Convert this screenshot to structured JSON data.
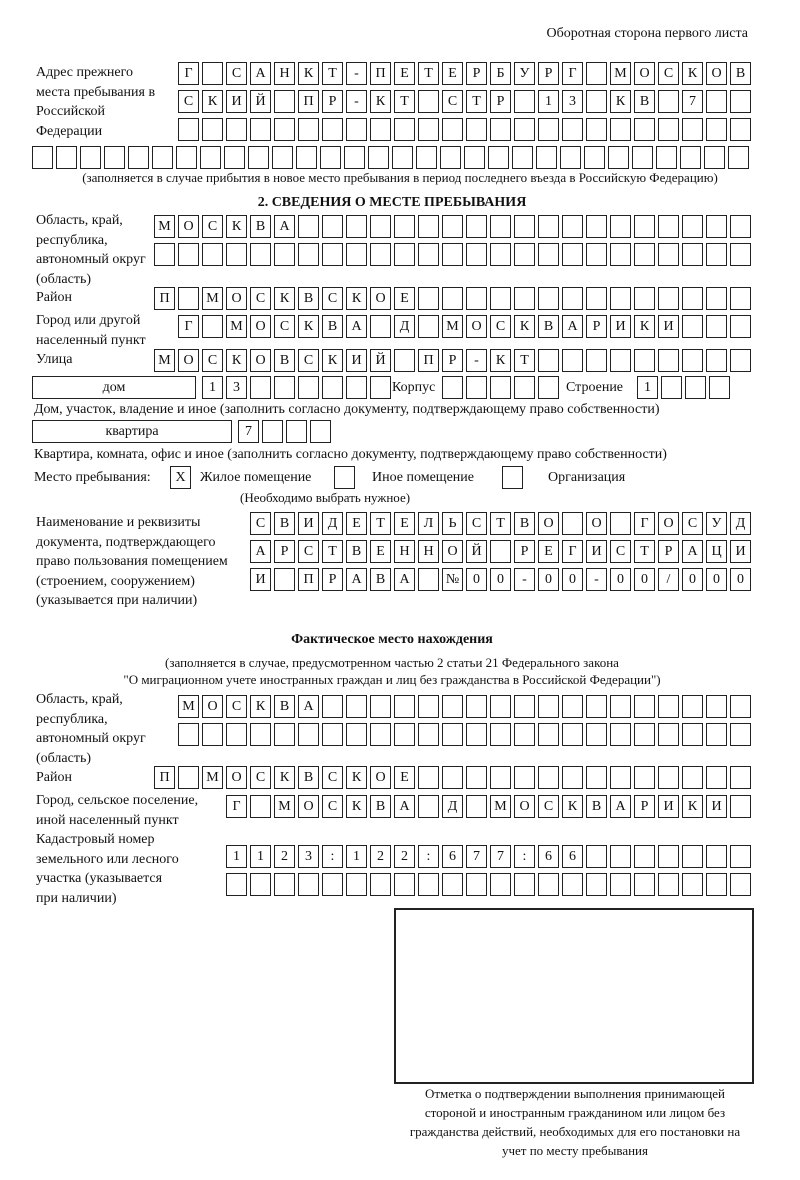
{
  "header": "Оборотная сторона первого листа",
  "previous_address": {
    "label": "Адрес прежнего места пребывания в Российской Федерации",
    "rows": [
      [
        "Г",
        "",
        "С",
        "А",
        "Н",
        "К",
        "Т",
        "-",
        "П",
        "Е",
        "Т",
        "Е",
        "Р",
        "Б",
        "У",
        "Р",
        "Г",
        "",
        "М",
        "О",
        "С",
        "К",
        "О",
        "В"
      ],
      [
        "С",
        "К",
        "И",
        "Й",
        "",
        "П",
        "Р",
        "-",
        "К",
        "Т",
        "",
        "С",
        "Т",
        "Р",
        "",
        "1",
        "3",
        "",
        "К",
        "В",
        "",
        "7",
        "",
        ""
      ],
      [
        "",
        "",
        "",
        "",
        "",
        "",
        "",
        "",
        "",
        "",
        "",
        "",
        "",
        "",
        "",
        "",
        "",
        "",
        "",
        "",
        "",
        "",
        "",
        ""
      ],
      [
        "",
        "",
        "",
        "",
        "",
        "",
        "",
        "",
        "",
        "",
        "",
        "",
        "",
        "",
        "",
        "",
        "",
        "",
        "",
        "",
        "",
        "",
        "",
        "",
        "",
        "",
        "",
        "",
        "",
        ""
      ]
    ],
    "note": "(заполняется в случае прибытия в новое место пребывания в период последнего въезда в Российскую Федерацию)"
  },
  "section2": {
    "title": "2. СВЕДЕНИЯ О МЕСТЕ ПРЕБЫВАНИЯ",
    "region_label": "Область, край, республика, автономный округ (область)",
    "region_rows": [
      [
        "М",
        "О",
        "С",
        "К",
        "В",
        "А",
        "",
        "",
        "",
        "",
        "",
        "",
        "",
        "",
        "",
        "",
        "",
        "",
        "",
        "",
        "",
        "",
        "",
        "",
        ""
      ],
      [
        "",
        "",
        "",
        "",
        "",
        "",
        "",
        "",
        "",
        "",
        "",
        "",
        "",
        "",
        "",
        "",
        "",
        "",
        "",
        "",
        "",
        "",
        "",
        "",
        ""
      ]
    ],
    "district_label": "Район",
    "district_row": [
      "П",
      "",
      "М",
      "О",
      "С",
      "К",
      "В",
      "С",
      "К",
      "О",
      "Е",
      "",
      "",
      "",
      "",
      "",
      "",
      "",
      "",
      "",
      "",
      "",
      "",
      "",
      ""
    ],
    "city_label": "Город или другой населенный пункт",
    "city_row": [
      "Г",
      "",
      "М",
      "О",
      "С",
      "К",
      "В",
      "А",
      "",
      "Д",
      "",
      "М",
      "О",
      "С",
      "К",
      "В",
      "А",
      "Р",
      "И",
      "К",
      "И",
      "",
      "",
      ""
    ],
    "street_label": "Улица",
    "street_row": [
      "М",
      "О",
      "С",
      "К",
      "О",
      "В",
      "С",
      "К",
      "И",
      "Й",
      "",
      "П",
      "Р",
      "-",
      "К",
      "Т",
      "",
      "",
      "",
      "",
      "",
      "",
      "",
      "",
      ""
    ],
    "house_type": "дом",
    "house_cells": [
      "1",
      "3",
      "",
      "",
      "",
      "",
      "",
      ""
    ],
    "korpus_label": "Корпус",
    "korpus_cells": [
      "",
      "",
      "",
      "",
      ""
    ],
    "stroenie_label": "Строение",
    "stroenie_cells": [
      "1",
      "",
      "",
      ""
    ],
    "house_note": "Дом, участок, владение и иное (заполнить согласно документу, подтверждающему право собственности)",
    "flat_type": "квартира",
    "flat_cells": [
      "7",
      "",
      "",
      ""
    ],
    "flat_note": "Квартира, комната, офис и иное (заполнить согласно документу, подтверждающему право собственности)",
    "place_label": "Место пребывания:",
    "place_options": [
      {
        "label": "Жилое помещение",
        "checked": true,
        "mark": "X"
      },
      {
        "label": "Иное помещение",
        "checked": false,
        "mark": ""
      },
      {
        "label": "Организация",
        "checked": false,
        "mark": ""
      }
    ],
    "place_note": "(Необходимо выбрать нужное)",
    "document_label": "Наименование и реквизиты документа, подтверждающего право пользования помещением (строением, сооружением) (указывается при наличии)",
    "document_rows": [
      [
        "С",
        "В",
        "И",
        "Д",
        "Е",
        "Т",
        "Е",
        "Л",
        "Ь",
        "С",
        "Т",
        "В",
        "О",
        "",
        "О",
        "",
        "Г",
        "О",
        "С",
        "У",
        "Д"
      ],
      [
        "А",
        "Р",
        "С",
        "Т",
        "В",
        "Е",
        "Н",
        "Н",
        "О",
        "Й",
        "",
        "Р",
        "Е",
        "Г",
        "И",
        "С",
        "Т",
        "Р",
        "А",
        "Ц",
        "И"
      ],
      [
        "И",
        "",
        "П",
        "Р",
        "А",
        "В",
        "А",
        "",
        "№",
        "0",
        "0",
        "-",
        "0",
        "0",
        "-",
        "0",
        "0",
        "/",
        "0",
        "0",
        "0"
      ]
    ]
  },
  "actual": {
    "title": "Фактическое место нахождения",
    "note1": "(заполняется в случае, предусмотренном частью 2 статьи 21 Федерального закона",
    "note2": "\"О миграционном учете иностранных граждан и лиц без гражданства в Российской Федерации\")",
    "region_label": "Область, край, республика, автономный округ (область)",
    "region_rows": [
      [
        "М",
        "О",
        "С",
        "К",
        "В",
        "А",
        "",
        "",
        "",
        "",
        "",
        "",
        "",
        "",
        "",
        "",
        "",
        "",
        "",
        "",
        "",
        "",
        "",
        ""
      ],
      [
        "",
        "",
        "",
        "",
        "",
        "",
        "",
        "",
        "",
        "",
        "",
        "",
        "",
        "",
        "",
        "",
        "",
        "",
        "",
        "",
        "",
        "",
        "",
        ""
      ]
    ],
    "district_label": "Район",
    "district_row": [
      "П",
      "",
      "М",
      "О",
      "С",
      "К",
      "В",
      "С",
      "К",
      "О",
      "Е",
      "",
      "",
      "",
      "",
      "",
      "",
      "",
      "",
      "",
      "",
      "",
      "",
      "",
      ""
    ],
    "city_label": "Город, сельское поселение, иной населенный пункт",
    "city_row": [
      "Г",
      "",
      "М",
      "О",
      "С",
      "К",
      "В",
      "А",
      "",
      "Д",
      "",
      "М",
      "О",
      "С",
      "К",
      "В",
      "А",
      "Р",
      "И",
      "К",
      "И",
      ""
    ],
    "cadastral_label": "Кадастровый номер земельного или лесного участка (указывается при наличии)",
    "cadastral_rows": [
      [
        "1",
        "1",
        "2",
        "3",
        ":",
        "1",
        "2",
        "2",
        ":",
        "6",
        "7",
        "7",
        ":",
        "6",
        "6",
        "",
        "",
        "",
        "",
        "",
        "",
        ""
      ],
      [
        "",
        "",
        "",
        "",
        "",
        "",
        "",
        "",
        "",
        "",
        "",
        "",
        "",
        "",
        "",
        "",
        "",
        "",
        "",
        "",
        "",
        ""
      ]
    ]
  },
  "stamp_caption": "Отметка о подтверждении выполнения принимающей стороной и иностранным гражданином или лицом без гражданства действий, необходимых для его постановки на учет по месту пребывания"
}
